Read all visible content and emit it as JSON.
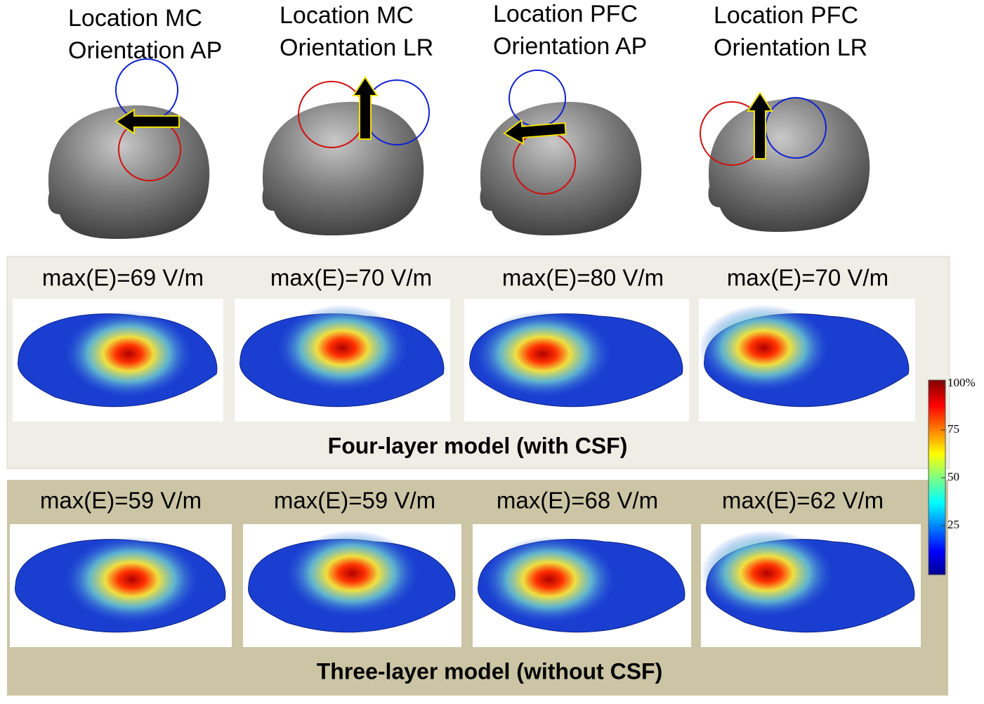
{
  "columns": [
    {
      "location": "Location MC",
      "orientation": "Orientation AP"
    },
    {
      "location": "Location MC",
      "orientation": "Orientation LR"
    },
    {
      "location": "Location PFC",
      "orientation": "Orientation AP"
    },
    {
      "location": "Location PFC",
      "orientation": "Orientation LR"
    }
  ],
  "four_layer": {
    "title": "Four-layer model (with CSF)",
    "max_e": [
      "max(E)=69 V/m",
      "max(E)=70 V/m",
      "max(E)=80 V/m",
      "max(E)=70 V/m"
    ]
  },
  "three_layer": {
    "title": "Three-layer model (without CSF)",
    "max_e": [
      "max(E)=59 V/m",
      "max(E)=59 V/m",
      "max(E)=68 V/m",
      "max(E)=62 V/m"
    ]
  },
  "colorbar": {
    "ticks": [
      "100%",
      "75",
      "50",
      "25"
    ]
  }
}
